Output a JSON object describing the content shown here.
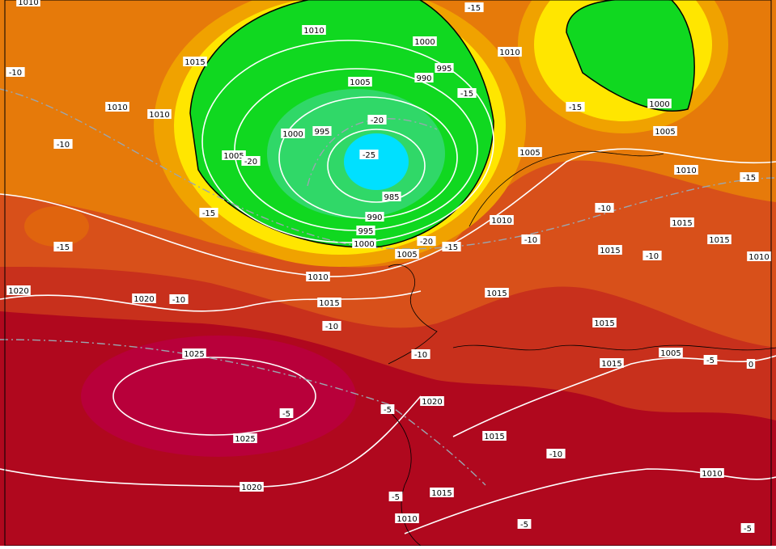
{
  "isobar_labels": [
    "1010",
    "1015",
    "1010",
    "1010",
    "1005",
    "1000",
    "995",
    "990",
    "1000",
    "995",
    "1005",
    "985",
    "990",
    "995",
    "1000",
    "1005",
    "1010",
    "1015",
    "1020",
    "1020",
    "1025",
    "1025",
    "1020",
    "1020",
    "1015",
    "1015",
    "1010",
    "1010",
    "1000",
    "1005",
    "1010",
    "1005",
    "1010",
    "1015",
    "1015",
    "1015",
    "1010",
    "1015",
    "1015",
    "1015",
    "1005",
    "1010",
    "1010"
  ],
  "temperature_labels": [
    "-15",
    "-10",
    "-10",
    "-15",
    "-15",
    "-20",
    "-25",
    "-20",
    "-15",
    "-15",
    "-20",
    "-15",
    "-10",
    "-10",
    "-10",
    "-15",
    "-10",
    "-10",
    "-10",
    "-5",
    "0",
    "-5",
    "-5",
    "-10",
    "-5",
    "-5",
    "-5"
  ]
}
